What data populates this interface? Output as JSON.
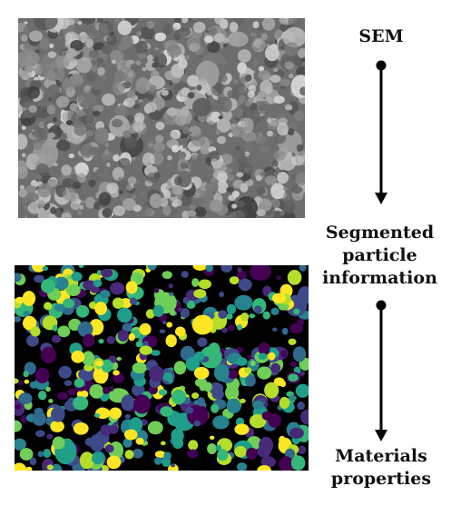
{
  "steps": {
    "sem": {
      "label": "SEM"
    },
    "segmented": {
      "lines": [
        "Segmented",
        "particle",
        "information"
      ]
    },
    "materials": {
      "lines": [
        "Materials",
        "properties"
      ]
    }
  },
  "colors": {
    "sem_background": "#6e6e6e",
    "segmentation_background": "#000000",
    "segmentation_palette": [
      "#440154",
      "#482878",
      "#3e4989",
      "#31688e",
      "#26828e",
      "#1f9e89",
      "#35b779",
      "#6ece58",
      "#b5de2b",
      "#fde725"
    ],
    "arrow": "#000000"
  }
}
